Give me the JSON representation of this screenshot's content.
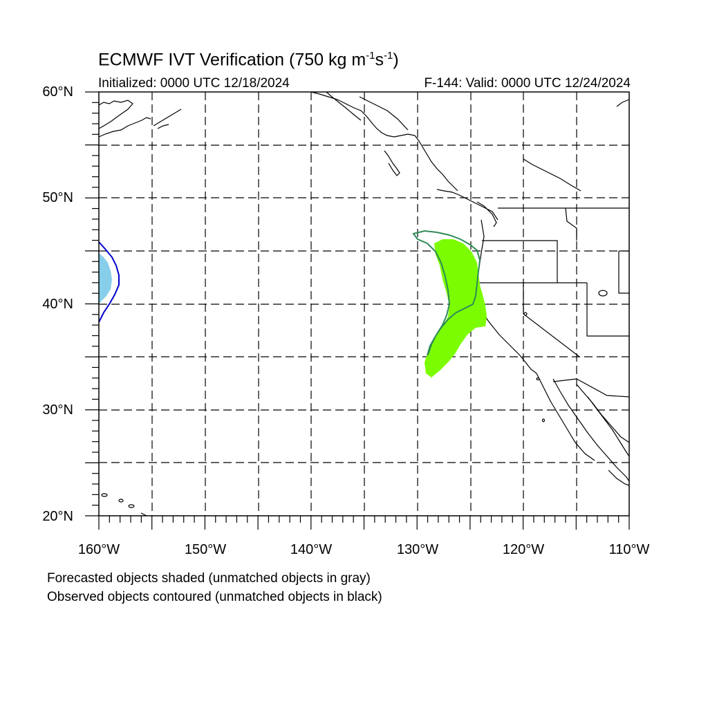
{
  "title": {
    "main": "ECMWF IVT Verification (750 kg m",
    "sup1": "-1",
    "mid": "s",
    "sup2": "-1",
    "end": ")"
  },
  "initialized": "Initialized: 0000 UTC 12/18/2024",
  "valid": "F-144: Valid: 0000 UTC 12/24/2024",
  "lat_labels": [
    "60°N",
    "50°N",
    "40°N",
    "30°N",
    "20°N"
  ],
  "lon_labels": [
    "160°W",
    "150°W",
    "140°W",
    "130°W",
    "120°W",
    "110°W"
  ],
  "notes": {
    "forecast": "Forecasted objects shaded (unmatched objects in gray)",
    "observed": "Observed objects contoured (unmatched objects in black)"
  },
  "map": {
    "lon_range": [
      -160,
      -110
    ],
    "lat_range": [
      20,
      60
    ],
    "grid_spacing_deg": 5,
    "colors": {
      "forecast_matched_1": "#87ceeb",
      "observed_matched_1": "#0000cd",
      "forecast_matched_2": "#7cfc00",
      "observed_matched_2": "#2e8b57",
      "coastline": "#000000",
      "grid": "#000000"
    }
  }
}
